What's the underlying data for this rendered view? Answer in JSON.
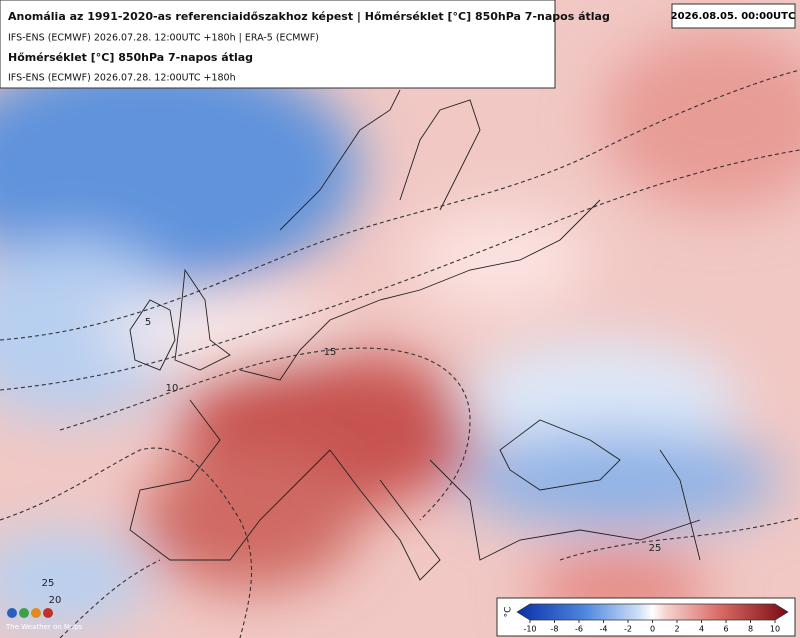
{
  "header": {
    "title": "Anomália az 1991-2020-as referenciaidőszakhoz képest | Hőmérséklet [°C] 850hPa 7-napos átlag",
    "subtitle": "IFS-ENS (ECMWF) 2026.07.28. 12:00UTC +180h | ERA-5 (ECMWF)",
    "overlay_title": "Hőmérséklet [°C] 850hPa 7-napos átlag",
    "overlay_subtitle": "IFS-ENS (ECMWF) 2026.07.28. 12:00UTC +180h"
  },
  "valid_time": "2026.08.05. 00:00UTC",
  "colorbar": {
    "unit": "°C",
    "range": [
      -10,
      10
    ],
    "ticks": [
      -10,
      -8,
      -6,
      -4,
      -2,
      0,
      2,
      4,
      6,
      8,
      10
    ]
  },
  "contour_labels": [
    5,
    10,
    15,
    20,
    25,
    25
  ],
  "logo": "The Weather on Maps"
}
